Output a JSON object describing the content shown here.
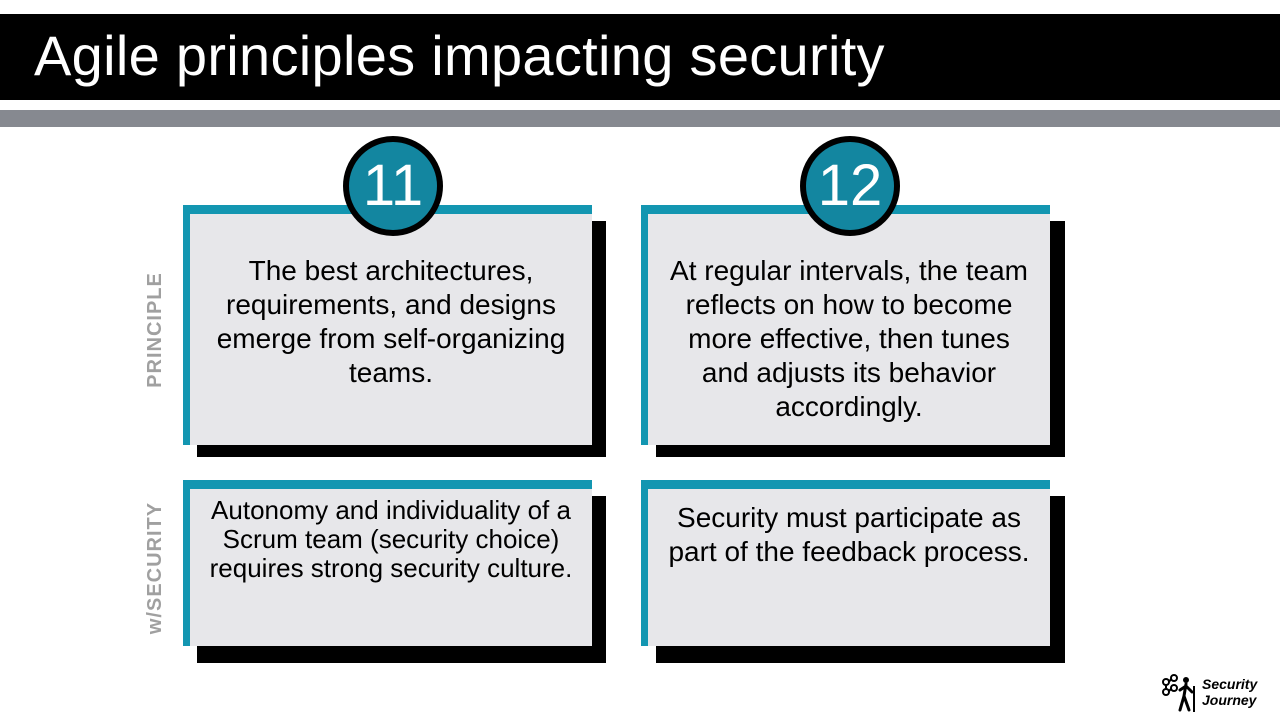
{
  "slide": {
    "title": "Agile principles impacting security"
  },
  "row_labels": {
    "principle": "PRINCIPLE",
    "security": "w/SECURITY"
  },
  "cards": [
    {
      "number": "11",
      "principle": "The best architectures, requirements, and designs emerge from self-organizing teams.",
      "security": "Autonomy and individuality of a Scrum team (security choice) requires strong security culture."
    },
    {
      "number": "12",
      "principle": "At regular intervals, the team reflects on how to become more effective, then tunes and adjusts its behavior accordingly.",
      "security": "Security must participate as part of the feedback process."
    }
  ],
  "logo": {
    "line1": "Security",
    "line2": "Journey",
    "icon": "hiker-network-icon"
  },
  "colors": {
    "accent": "#1396b1",
    "circle": "#1386a0",
    "card_bg": "#e7e7ea",
    "gray_bar": "#868990",
    "label_gray": "#a0a0a0"
  }
}
